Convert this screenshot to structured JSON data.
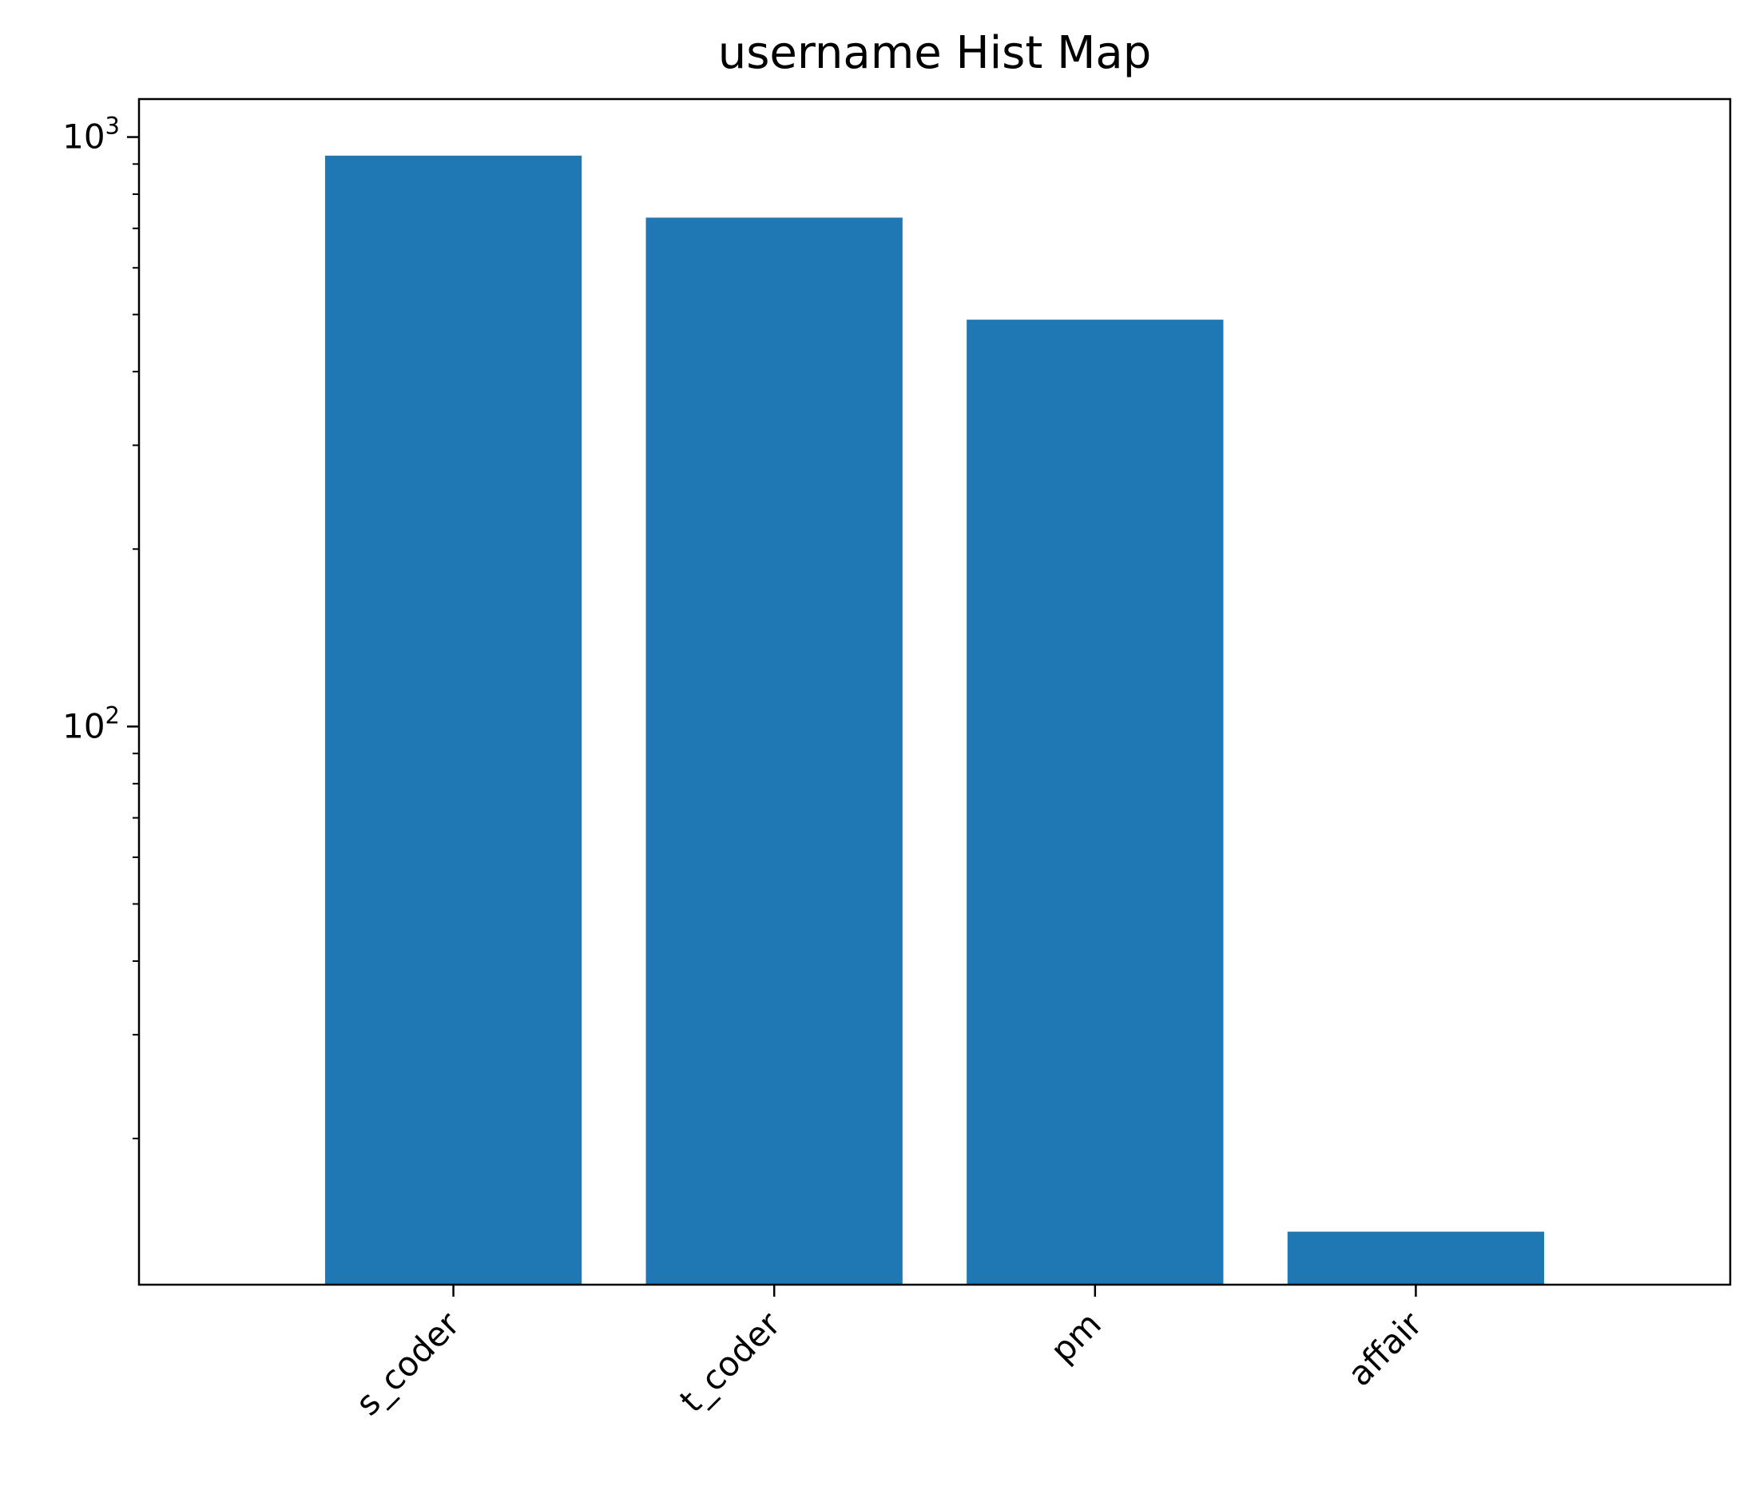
{
  "chart_data": {
    "type": "bar",
    "title": "username Hist Map",
    "xlabel": "",
    "ylabel": "",
    "yscale": "log",
    "ylim": [
      11.3,
      1160
    ],
    "categories": [
      "s_coder",
      "t_coder",
      "pm",
      "affair"
    ],
    "values": [
      930,
      730,
      490,
      13.9
    ],
    "y_ticks": [
      {
        "value": 100,
        "label_base": "10",
        "label_exp": "2"
      },
      {
        "value": 1000,
        "label_base": "10",
        "label_exp": "3"
      }
    ],
    "x_tick_rotation_deg": 45,
    "grid": false,
    "legend": "none",
    "colors": {
      "bar": "#1f77b4",
      "axes": "#000000",
      "background": "#ffffff"
    }
  }
}
